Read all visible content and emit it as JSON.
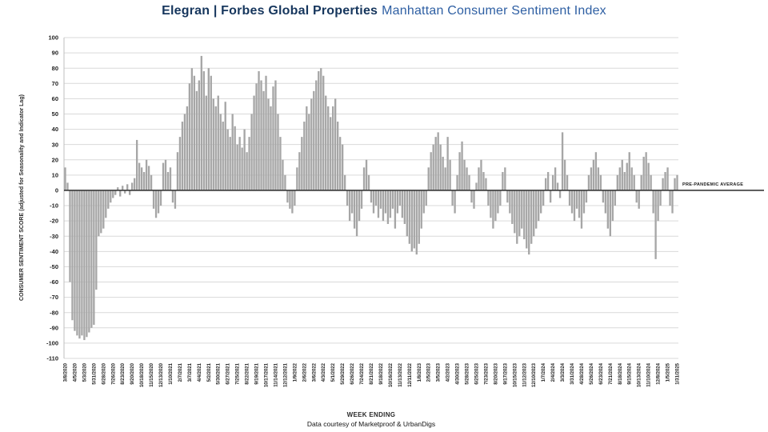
{
  "title": {
    "brand": "Elegran | Forbes Global Properties",
    "subtitle": "Manhattan Consumer Sentiment Index"
  },
  "footer": {
    "credit": "Data courtesy of Marketproof & UrbanDigs"
  },
  "chart_data": {
    "type": "bar",
    "title": "Elegran | Forbes Global Properties Manhattan Consumer Sentiment Index",
    "xlabel": "WEEK ENDING",
    "ylabel": "CONSUMER SENTIMENT SCORE (adjusted for Seasonality and Indicator Lag)",
    "zero_line_label": "PRE-PANDEMIC AVERAGE",
    "ylim": [
      -110,
      100
    ],
    "yticks": [
      100,
      90,
      80,
      70,
      60,
      50,
      40,
      30,
      20,
      10,
      0,
      -10,
      -20,
      -30,
      -40,
      -50,
      -60,
      -70,
      -80,
      -90,
      -100,
      -110
    ],
    "grid": true,
    "legend": "none",
    "bar_color": "#a6a6a6",
    "grid_color": "#d9d9d9",
    "zero_line_color": "#3a3a3a",
    "label_every": 4,
    "x_labels": [
      "3/8/2020",
      "4/5/2020",
      "5/3/2020",
      "5/31/2020",
      "6/28/2020",
      "7/26/2020",
      "8/23/2020",
      "9/20/2020",
      "10/18/2020",
      "11/15/2020",
      "12/13/2020",
      "1/10/2021",
      "2/7/2021",
      "3/7/2021",
      "4/4/2021",
      "5/2/2021",
      "5/30/2021",
      "6/27/2021",
      "7/25/2021",
      "8/22/2021",
      "9/19/2021",
      "10/17/2021",
      "11/14/2021",
      "12/12/2021",
      "1/9/2022",
      "2/6/2022",
      "3/6/2022",
      "4/3/2022",
      "5/1/2022",
      "5/29/2022",
      "6/26/2022",
      "7/24/2022",
      "8/21/2022",
      "9/18/2022",
      "10/16/2022",
      "11/13/2022",
      "12/11/2022",
      "1/8/2023",
      "2/5/2023",
      "3/5/2023",
      "4/2/2023",
      "4/30/2023",
      "5/28/2023",
      "6/25/2023",
      "7/23/2023",
      "8/20/2023",
      "9/17/2023",
      "10/15/2023",
      "11/12/2023",
      "12/10/2023",
      "1/7/2024",
      "2/4/2024",
      "3/3/2024",
      "3/31/2024",
      "4/28/2024",
      "5/26/2024",
      "6/23/2024",
      "7/21/2024",
      "8/18/2024",
      "9/15/2024",
      "10/13/2024",
      "11/10/2024",
      "12/8/2024",
      "1/5/2025",
      "1/31/2025"
    ],
    "values": [
      15,
      5,
      -60,
      -85,
      -92,
      -95,
      -97,
      -95,
      -98,
      -96,
      -93,
      -90,
      -88,
      -65,
      -30,
      -28,
      -25,
      -18,
      -12,
      -8,
      -5,
      -3,
      2,
      -4,
      3,
      -2,
      4,
      -3,
      5,
      8,
      33,
      18,
      15,
      12,
      20,
      16,
      10,
      -12,
      -18,
      -15,
      -10,
      18,
      20,
      12,
      15,
      -8,
      -12,
      25,
      35,
      45,
      50,
      55,
      70,
      80,
      75,
      65,
      72,
      88,
      78,
      62,
      80,
      75,
      60,
      55,
      62,
      50,
      45,
      58,
      40,
      35,
      50,
      42,
      30,
      35,
      28,
      40,
      25,
      35,
      50,
      62,
      70,
      78,
      72,
      65,
      75,
      60,
      55,
      68,
      72,
      50,
      35,
      20,
      10,
      -8,
      -12,
      -15,
      -10,
      15,
      25,
      35,
      45,
      55,
      50,
      60,
      65,
      72,
      78,
      80,
      75,
      62,
      55,
      48,
      55,
      60,
      45,
      35,
      30,
      10,
      -10,
      -20,
      -15,
      -25,
      -30,
      -20,
      -12,
      15,
      20,
      10,
      -8,
      -15,
      -10,
      -18,
      -12,
      -20,
      -15,
      -22,
      -18,
      -12,
      -25,
      -15,
      -10,
      -18,
      -22,
      -30,
      -35,
      -40,
      -38,
      -42,
      -35,
      -25,
      -15,
      -10,
      15,
      25,
      30,
      35,
      38,
      30,
      22,
      15,
      35,
      20,
      -10,
      -15,
      10,
      25,
      32,
      20,
      15,
      10,
      -8,
      -12,
      5,
      15,
      20,
      12,
      8,
      -10,
      -18,
      -25,
      -20,
      -15,
      -10,
      12,
      15,
      -8,
      -15,
      -22,
      -28,
      -35,
      -30,
      -25,
      -32,
      -38,
      -42,
      -35,
      -30,
      -25,
      -20,
      -15,
      -10,
      8,
      12,
      -8,
      10,
      15,
      5,
      -5,
      38,
      20,
      10,
      -10,
      -15,
      -20,
      -12,
      -18,
      -25,
      -15,
      -8,
      10,
      15,
      20,
      25,
      15,
      10,
      -8,
      -15,
      -25,
      -30,
      -20,
      -10,
      10,
      15,
      20,
      12,
      18,
      25,
      15,
      10,
      -8,
      -12,
      10,
      22,
      25,
      18,
      10,
      -15,
      -45,
      -20,
      -10,
      8,
      12,
      15,
      -10,
      -15,
      8,
      10
    ]
  }
}
